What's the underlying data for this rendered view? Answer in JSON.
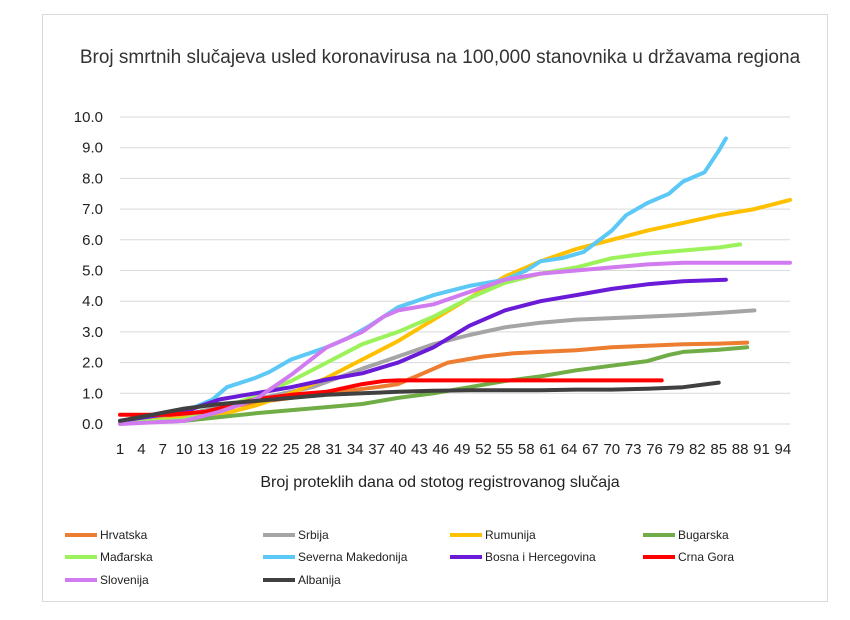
{
  "chart_data": {
    "type": "line",
    "title": "Broj  smrtnih slučajeva usled koronavirusa na 100,000 stanovnika u državama regiona",
    "xlabel": "Broj proteklih dana od stotog registrovanog slučaja",
    "ylabel": "",
    "ylim": [
      0,
      10
    ],
    "xlim": [
      1,
      95
    ],
    "grid": true,
    "legend_position": "bottom",
    "y_ticks": [
      "0.0",
      "1.0",
      "2.0",
      "3.0",
      "4.0",
      "5.0",
      "6.0",
      "7.0",
      "8.0",
      "9.0",
      "10.0"
    ],
    "x_ticks": [
      "1",
      "4",
      "7",
      "10",
      "13",
      "16",
      "19",
      "22",
      "25",
      "28",
      "31",
      "34",
      "37",
      "40",
      "43",
      "46",
      "49",
      "52",
      "55",
      "58",
      "61",
      "64",
      "67",
      "70",
      "73",
      "76",
      "79",
      "82",
      "85",
      "88",
      "91",
      "94"
    ],
    "series": [
      {
        "name": "Hrvatska",
        "color": "#ED7D31",
        "x": [
          1,
          10,
          20,
          30,
          37,
          40,
          43,
          47,
          52,
          56,
          60,
          65,
          70,
          75,
          80,
          85,
          89
        ],
        "y": [
          0.05,
          0.3,
          0.7,
          1.0,
          1.2,
          1.3,
          1.6,
          2.0,
          2.2,
          2.3,
          2.35,
          2.4,
          2.5,
          2.55,
          2.6,
          2.62,
          2.65
        ]
      },
      {
        "name": "Srbija",
        "color": "#A5A5A5",
        "x": [
          1,
          10,
          20,
          28,
          35,
          40,
          45,
          50,
          55,
          60,
          65,
          70,
          75,
          80,
          85,
          90
        ],
        "y": [
          0.1,
          0.3,
          0.8,
          1.2,
          1.8,
          2.2,
          2.6,
          2.9,
          3.15,
          3.3,
          3.4,
          3.45,
          3.5,
          3.55,
          3.62,
          3.7
        ]
      },
      {
        "name": "Rumunija",
        "color": "#FFC000",
        "x": [
          1,
          10,
          15,
          20,
          25,
          30,
          35,
          40,
          45,
          50,
          55,
          60,
          65,
          70,
          75,
          80,
          85,
          90,
          95
        ],
        "y": [
          0.05,
          0.2,
          0.3,
          0.6,
          1.0,
          1.5,
          2.1,
          2.7,
          3.4,
          4.1,
          4.8,
          5.3,
          5.7,
          6.0,
          6.3,
          6.55,
          6.8,
          7.0,
          7.3
        ]
      },
      {
        "name": "Bugarska",
        "color": "#70AD47",
        "x": [
          1,
          10,
          20,
          30,
          35,
          40,
          45,
          50,
          55,
          60,
          65,
          70,
          75,
          78,
          80,
          85,
          89
        ],
        "y": [
          0.02,
          0.1,
          0.35,
          0.55,
          0.65,
          0.85,
          1.0,
          1.2,
          1.4,
          1.55,
          1.75,
          1.9,
          2.05,
          2.25,
          2.35,
          2.42,
          2.5
        ]
      },
      {
        "name": "Mađarska",
        "color": "#9BF25A",
        "x": [
          1,
          10,
          15,
          20,
          25,
          30,
          35,
          40,
          45,
          50,
          55,
          60,
          65,
          70,
          75,
          80,
          85,
          88
        ],
        "y": [
          0.05,
          0.15,
          0.5,
          0.9,
          1.4,
          2.0,
          2.6,
          3.0,
          3.5,
          4.1,
          4.6,
          4.9,
          5.1,
          5.4,
          5.55,
          5.65,
          5.75,
          5.85
        ]
      },
      {
        "name": "Severna Makedonija",
        "color": "#5BC8F5",
        "x": [
          1,
          10,
          14,
          16,
          20,
          22,
          25,
          30,
          33,
          36,
          40,
          45,
          50,
          55,
          58,
          60,
          63,
          66,
          70,
          72,
          75,
          78,
          80,
          83,
          85,
          86
        ],
        "y": [
          0.1,
          0.4,
          0.8,
          1.2,
          1.5,
          1.7,
          2.1,
          2.5,
          2.8,
          3.2,
          3.8,
          4.2,
          4.5,
          4.7,
          5.0,
          5.3,
          5.4,
          5.6,
          6.3,
          6.8,
          7.2,
          7.5,
          7.9,
          8.2,
          8.9,
          9.3
        ]
      },
      {
        "name": "Bosna i Hercegovina",
        "color": "#6A1BD8",
        "x": [
          1,
          10,
          15,
          20,
          25,
          30,
          35,
          40,
          45,
          50,
          55,
          60,
          65,
          70,
          75,
          80,
          86
        ],
        "y": [
          0.1,
          0.4,
          0.8,
          1.0,
          1.2,
          1.45,
          1.65,
          2.0,
          2.5,
          3.2,
          3.7,
          4.0,
          4.2,
          4.4,
          4.55,
          4.65,
          4.7
        ]
      },
      {
        "name": "Crna Gora",
        "color": "#FF0000",
        "x": [
          1,
          8,
          13,
          20,
          25,
          30,
          35,
          38,
          40,
          45,
          50,
          55,
          60,
          65,
          70,
          77
        ],
        "y": [
          0.3,
          0.3,
          0.4,
          0.8,
          0.95,
          1.05,
          1.3,
          1.4,
          1.42,
          1.42,
          1.42,
          1.42,
          1.42,
          1.42,
          1.42,
          1.42
        ]
      },
      {
        "name": "Slovenija",
        "color": "#D17BF0",
        "x": [
          1,
          10,
          15,
          20,
          25,
          30,
          35,
          38,
          40,
          45,
          50,
          55,
          60,
          65,
          70,
          75,
          80,
          85,
          90,
          95
        ],
        "y": [
          0.0,
          0.1,
          0.4,
          0.8,
          1.6,
          2.5,
          3.0,
          3.5,
          3.7,
          3.9,
          4.3,
          4.7,
          4.9,
          5.0,
          5.1,
          5.2,
          5.25,
          5.25,
          5.25,
          5.25
        ]
      },
      {
        "name": "Albanija",
        "color": "#404040",
        "x": [
          1,
          10,
          15,
          20,
          25,
          30,
          35,
          40,
          45,
          50,
          55,
          60,
          65,
          70,
          75,
          80,
          85
        ],
        "y": [
          0.1,
          0.5,
          0.65,
          0.75,
          0.85,
          0.95,
          1.0,
          1.05,
          1.08,
          1.1,
          1.1,
          1.1,
          1.12,
          1.12,
          1.15,
          1.2,
          1.35
        ]
      }
    ]
  }
}
